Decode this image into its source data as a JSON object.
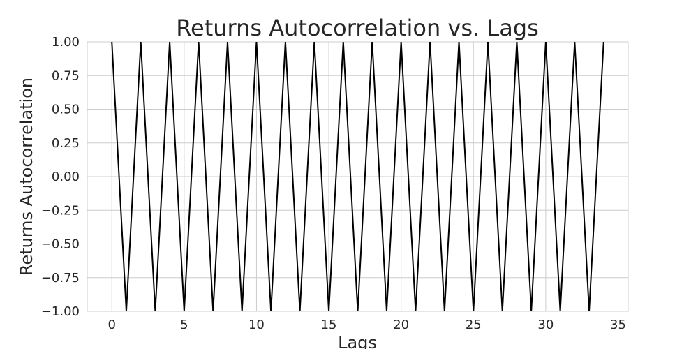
{
  "chart_data": {
    "type": "line",
    "title": "Returns Autocorrelation vs. Lags",
    "xlabel": "Lags",
    "ylabel": "Returns Autocorrelation",
    "xlim": [
      -1.7,
      35.7
    ],
    "ylim": [
      -1.0,
      1.0
    ],
    "xticks": [
      0,
      5,
      10,
      15,
      20,
      25,
      30,
      35
    ],
    "xtick_labels": [
      "0",
      "5",
      "10",
      "15",
      "20",
      "25",
      "30",
      "35"
    ],
    "yticks": [
      1.0,
      0.75,
      0.5,
      0.25,
      0.0,
      -0.25,
      -0.5,
      -0.75,
      -1.0
    ],
    "ytick_labels": [
      "1.00",
      "0.75",
      "0.50",
      "0.25",
      "0.00",
      "−0.25",
      "−0.50",
      "−0.75",
      "−1.00"
    ],
    "grid": true,
    "series": [
      {
        "color": "#000000",
        "x": [
          0,
          1,
          2,
          3,
          4,
          5,
          6,
          7,
          8,
          9,
          10,
          11,
          12,
          13,
          14,
          15,
          16,
          17,
          18,
          19,
          20,
          21,
          22,
          23,
          24,
          25,
          26,
          27,
          28,
          29,
          30,
          31,
          32,
          33,
          34
        ],
        "y": [
          1,
          -1,
          1,
          -1,
          1,
          -1,
          1,
          -1,
          1,
          -1,
          1,
          -1,
          1,
          -1,
          1,
          -1,
          1,
          -1,
          1,
          -1,
          1,
          -1,
          1,
          -1,
          1,
          -1,
          1,
          -1,
          1,
          -1,
          1,
          -1,
          1,
          -1,
          1
        ]
      }
    ]
  }
}
